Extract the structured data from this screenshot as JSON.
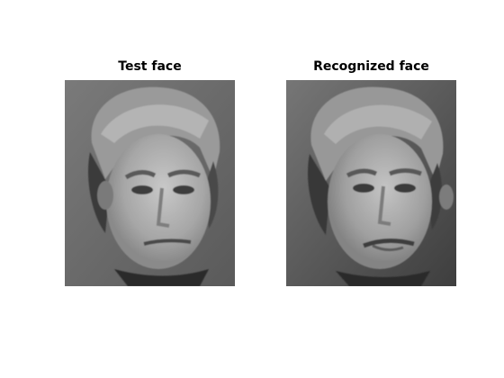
{
  "figure": {
    "background": "#ffffff",
    "panels": [
      {
        "title": "Test face"
      },
      {
        "title": "Recognized face"
      }
    ]
  }
}
